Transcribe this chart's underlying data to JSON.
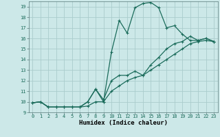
{
  "xlabel": "Humidex (Indice chaleur)",
  "background_color": "#cce8e8",
  "grid_color": "#aacccc",
  "line_color": "#1a6b5a",
  "xlim": [
    -0.5,
    23.5
  ],
  "ylim": [
    9,
    19.5
  ],
  "yticks": [
    9,
    10,
    11,
    12,
    13,
    14,
    15,
    16,
    17,
    18,
    19
  ],
  "xticks": [
    0,
    1,
    2,
    3,
    4,
    5,
    6,
    7,
    8,
    9,
    10,
    11,
    12,
    13,
    14,
    15,
    16,
    17,
    18,
    19,
    20,
    21,
    22,
    23
  ],
  "curve1_x": [
    0,
    1,
    2,
    3,
    4,
    5,
    6,
    7,
    8,
    9,
    10,
    11,
    12,
    13,
    14,
    15,
    16,
    17,
    18,
    19,
    20,
    21,
    22,
    23
  ],
  "curve1_y": [
    9.9,
    10.0,
    9.5,
    9.5,
    9.5,
    9.5,
    9.5,
    10.0,
    11.2,
    10.0,
    14.7,
    17.7,
    16.5,
    18.9,
    19.3,
    19.4,
    18.9,
    17.0,
    17.2,
    16.4,
    15.8,
    15.8,
    16.0,
    15.7
  ],
  "curve2_x": [
    0,
    1,
    2,
    3,
    4,
    5,
    6,
    7,
    8,
    9,
    10,
    11,
    12,
    13,
    14,
    15,
    16,
    17,
    18,
    19,
    20,
    21,
    22,
    23
  ],
  "curve2_y": [
    9.9,
    10.0,
    9.5,
    9.5,
    9.5,
    9.5,
    9.5,
    10.0,
    11.2,
    10.2,
    12.0,
    12.5,
    12.5,
    12.9,
    12.5,
    13.5,
    14.2,
    15.0,
    15.5,
    15.7,
    16.2,
    15.8,
    16.0,
    15.7
  ],
  "curve3_x": [
    0,
    1,
    2,
    3,
    4,
    5,
    6,
    7,
    8,
    9,
    10,
    11,
    12,
    13,
    14,
    15,
    16,
    17,
    18,
    19,
    20,
    21,
    22,
    23
  ],
  "curve3_y": [
    9.9,
    10.0,
    9.5,
    9.5,
    9.5,
    9.5,
    9.5,
    9.6,
    10.0,
    10.0,
    11.0,
    11.5,
    12.0,
    12.3,
    12.5,
    13.0,
    13.5,
    14.0,
    14.5,
    15.0,
    15.5,
    15.7,
    15.8,
    15.7
  ]
}
